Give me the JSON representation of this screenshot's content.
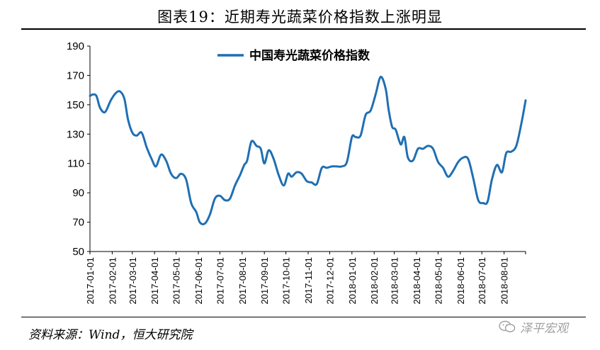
{
  "header": {
    "title": "图表19：近期寿光蔬菜价格指数上涨明显"
  },
  "footer": {
    "source": "资料来源：Wind，恒大研究院",
    "watermark": "泽平宏观"
  },
  "colors": {
    "series": "#1f6fb3",
    "axis": "#000000"
  },
  "icons": {
    "watermark_icon": "wechat-icon"
  },
  "chart_data": {
    "type": "line",
    "ylim": [
      50,
      190
    ],
    "yticks": [
      50,
      70,
      90,
      110,
      130,
      150,
      170,
      190
    ],
    "xlim": [
      "2017-01-01",
      "2018-08-31"
    ],
    "x_ticks": [
      "2017-01-01",
      "2017-02-01",
      "2017-03-01",
      "2017-04-01",
      "2017-05-01",
      "2017-06-01",
      "2017-07-01",
      "2017-08-01",
      "2017-09-01",
      "2017-10-01",
      "2017-11-01",
      "2017-12-01",
      "2018-01-01",
      "2018-02-01",
      "2018-03-01",
      "2018-04-01",
      "2018-05-01",
      "2018-06-01",
      "2018-07-01",
      "2018-08-01"
    ],
    "legend_position": "top-center",
    "grid": false,
    "series": [
      {
        "name": "中国寿光蔬菜价格指数",
        "x": [
          "2017-01-01",
          "2017-01-05",
          "2017-01-10",
          "2017-01-15",
          "2017-01-22",
          "2017-01-30",
          "2017-02-06",
          "2017-02-12",
          "2017-02-18",
          "2017-02-23",
          "2017-03-01",
          "2017-03-07",
          "2017-03-14",
          "2017-03-21",
          "2017-03-28",
          "2017-04-03",
          "2017-04-10",
          "2017-04-17",
          "2017-04-24",
          "2017-05-01",
          "2017-05-08",
          "2017-05-15",
          "2017-05-22",
          "2017-05-29",
          "2017-06-03",
          "2017-06-10",
          "2017-06-17",
          "2017-06-24",
          "2017-07-01",
          "2017-07-08",
          "2017-07-15",
          "2017-07-22",
          "2017-07-29",
          "2017-08-04",
          "2017-08-08",
          "2017-08-14",
          "2017-08-21",
          "2017-08-27",
          "2017-09-01",
          "2017-09-07",
          "2017-09-14",
          "2017-09-21",
          "2017-09-28",
          "2017-10-04",
          "2017-10-09",
          "2017-10-16",
          "2017-10-23",
          "2017-10-30",
          "2017-11-06",
          "2017-11-13",
          "2017-11-20",
          "2017-11-27",
          "2017-12-04",
          "2017-12-11",
          "2017-12-18",
          "2017-12-25",
          "2018-01-01",
          "2018-01-06",
          "2018-01-13",
          "2018-01-20",
          "2018-01-27",
          "2018-02-03",
          "2018-02-10",
          "2018-02-17",
          "2018-02-21",
          "2018-02-26",
          "2018-03-03",
          "2018-03-10",
          "2018-03-15",
          "2018-03-20",
          "2018-03-27",
          "2018-04-03",
          "2018-04-10",
          "2018-04-17",
          "2018-04-24",
          "2018-05-01",
          "2018-05-08",
          "2018-05-15",
          "2018-05-22",
          "2018-05-29",
          "2018-06-05",
          "2018-06-12",
          "2018-06-19",
          "2018-06-26",
          "2018-07-03",
          "2018-07-09",
          "2018-07-15",
          "2018-07-22",
          "2018-07-29",
          "2018-08-04",
          "2018-08-11",
          "2018-08-18",
          "2018-08-25",
          "2018-08-31"
        ],
        "values": [
          156,
          157,
          156,
          148,
          145,
          153,
          158,
          159,
          154,
          140,
          131,
          129,
          131,
          121,
          113,
          108,
          116,
          112,
          103,
          100,
          103,
          99,
          83,
          77,
          70,
          69,
          75,
          86,
          88,
          85,
          86,
          95,
          102,
          109,
          112,
          125,
          122,
          120,
          110,
          119,
          113,
          102,
          95,
          103,
          101,
          104,
          103,
          98,
          97,
          96,
          107,
          107,
          108,
          108,
          108,
          111,
          128,
          128,
          129,
          143,
          146,
          157,
          169,
          161,
          147,
          135,
          133,
          123,
          128,
          114,
          112,
          120,
          120,
          122,
          120,
          111,
          107,
          101,
          105,
          111,
          114,
          113,
          100,
          85,
          83,
          84,
          99,
          109,
          104,
          117,
          118,
          122,
          137,
          153
        ]
      }
    ]
  }
}
